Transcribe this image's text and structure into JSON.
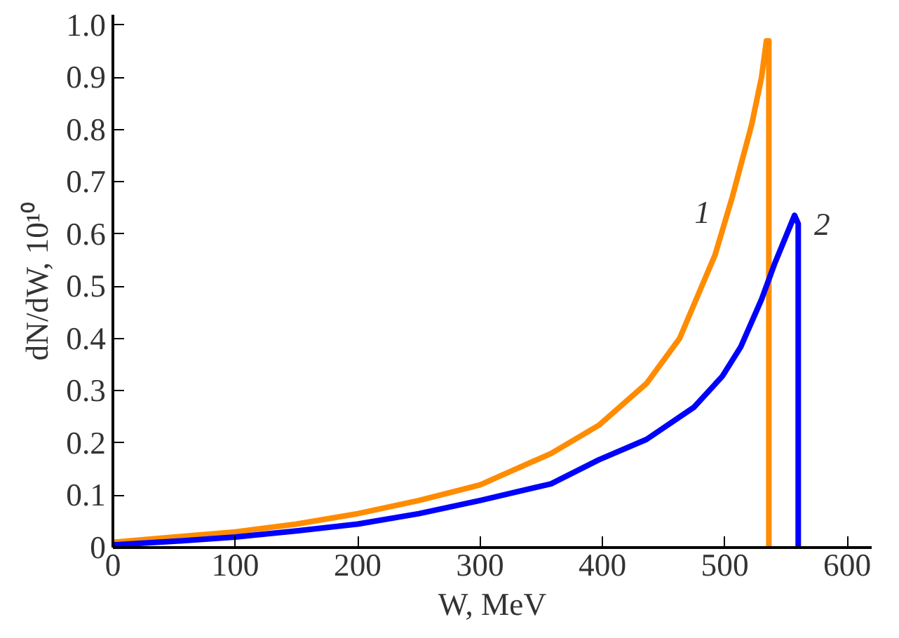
{
  "chart_data": {
    "type": "line",
    "xlabel": "W, MeV",
    "ylabel": "dN/dW, 10¹⁰",
    "xlim": [
      0,
      620
    ],
    "ylim": [
      0,
      1.02
    ],
    "xticks": [
      0,
      100,
      200,
      300,
      400,
      500,
      600
    ],
    "yticks": [
      0,
      0.1,
      0.2,
      0.3,
      0.4,
      0.5,
      0.6,
      0.7,
      0.8,
      0.9,
      {
        "value": 1,
        "label": "1.0"
      }
    ],
    "grid": false,
    "marker": "none",
    "line_style": "solid",
    "annotations": [
      "1",
      "2"
    ],
    "series": [
      {
        "color": "#ff8c00",
        "x": [
          0,
          50,
          100,
          150,
          200,
          250,
          300,
          358,
          397,
          436,
          463,
          492,
          506,
          522,
          530,
          534,
          536,
          536
        ],
        "values": [
          0.01,
          0.02,
          0.03,
          0.045,
          0.065,
          0.09,
          0.12,
          0.18,
          0.234,
          0.314,
          0.4,
          0.56,
          0.67,
          0.81,
          0.9,
          0.97,
          0.97,
          0
        ]
      },
      {
        "color": "#0000ff",
        "x": [
          0,
          50,
          100,
          150,
          200,
          250,
          300,
          358,
          397,
          436,
          475,
          498,
          513,
          530,
          541,
          557,
          560,
          560,
          560
        ],
        "values": [
          0.005,
          0.012,
          0.02,
          0.032,
          0.045,
          0.065,
          0.09,
          0.122,
          0.168,
          0.207,
          0.269,
          0.328,
          0.384,
          0.475,
          0.545,
          0.636,
          0.62,
          0.2,
          0
        ]
      }
    ]
  }
}
